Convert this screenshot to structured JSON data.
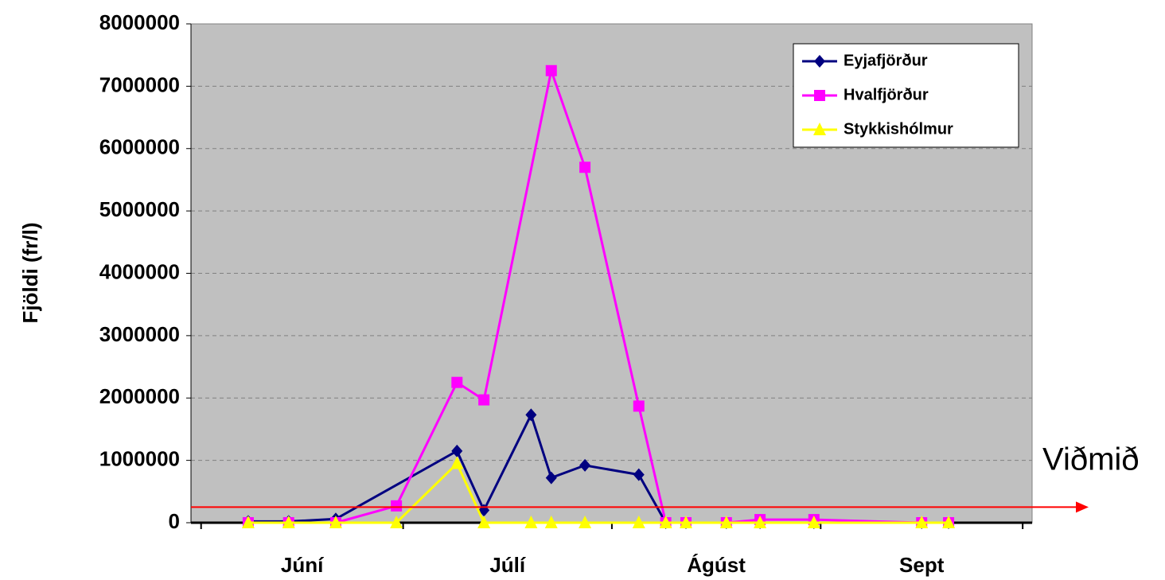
{
  "chart_data": {
    "type": "line",
    "y_label": "Fjöldi (fr/l)",
    "categories": [
      "Júní",
      "Júlí",
      "Ágúst",
      "Sept"
    ],
    "xlim": [
      -1.5,
      123.4
    ],
    "xticks": [
      0,
      30,
      61,
      92,
      122
    ],
    "ylim": [
      0,
      8000000
    ],
    "yticks": [
      0,
      1000000,
      2000000,
      3000000,
      4000000,
      5000000,
      6000000,
      7000000,
      8000000
    ],
    "grid": true,
    "legend": "upper right",
    "series": [
      {
        "name": "Eyjafjörður",
        "color": "#000080",
        "marker": "diamond",
        "x": [
          7,
          13,
          20,
          38,
          42,
          49,
          52,
          57,
          65,
          69,
          72,
          78,
          83,
          91,
          107,
          111
        ],
        "values": [
          20000,
          20000,
          60000,
          1150000,
          200000,
          1730000,
          720000,
          920000,
          770000,
          0,
          0,
          0,
          0,
          0,
          0,
          0
        ]
      },
      {
        "name": "Hvalfjörður",
        "color": "#ff00ff",
        "marker": "square",
        "x": [
          7,
          13,
          20,
          29,
          38,
          42,
          52,
          57,
          65,
          69,
          72,
          78,
          83,
          91,
          107,
          111
        ],
        "values": [
          0,
          0,
          0,
          270000,
          2250000,
          1970000,
          7250000,
          5700000,
          1870000,
          0,
          0,
          0,
          50000,
          50000,
          0,
          0
        ]
      },
      {
        "name": "Stykkishólmur",
        "color": "#ffff00",
        "marker": "triangle",
        "x": [
          7,
          13,
          20,
          29,
          38,
          42,
          49,
          52,
          57,
          65,
          69,
          72,
          78,
          83,
          91,
          107,
          111
        ],
        "values": [
          0,
          0,
          0,
          0,
          950000,
          0,
          0,
          0,
          0,
          0,
          0,
          0,
          0,
          0,
          0,
          0,
          0
        ]
      }
    ],
    "reference": {
      "label": "Viðmið",
      "value": 250000,
      "color": "#ff0000"
    }
  }
}
